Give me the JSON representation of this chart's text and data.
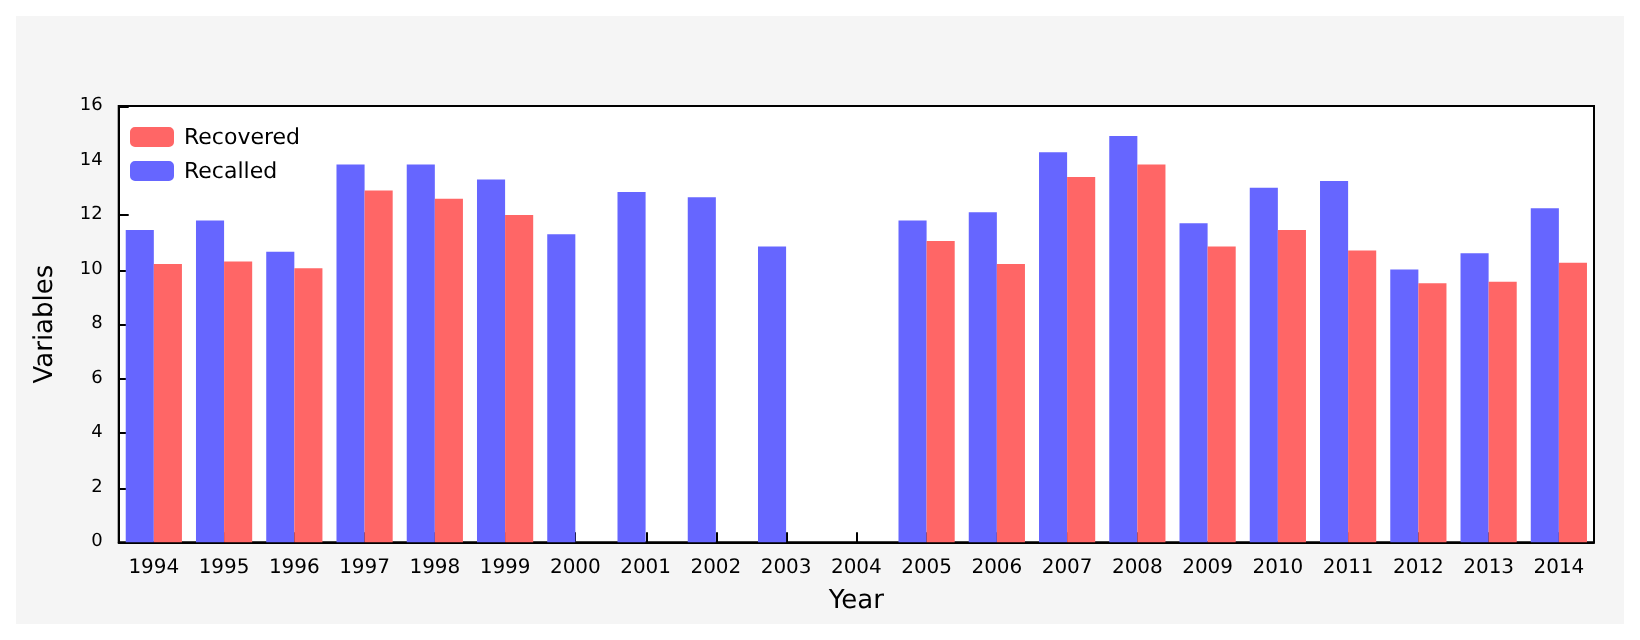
{
  "chart_data": {
    "type": "bar",
    "xlabel": "Year",
    "ylabel": "Variables",
    "categories": [
      "1994",
      "1995",
      "1996",
      "1997",
      "1998",
      "1999",
      "2000",
      "2001",
      "2002",
      "2003",
      "2004",
      "2005",
      "2006",
      "2007",
      "2008",
      "2009",
      "2010",
      "2011",
      "2012",
      "2013",
      "2014"
    ],
    "series": [
      {
        "name": "Recalled",
        "color": "#6666ff",
        "values": [
          11.45,
          11.8,
          10.65,
          13.85,
          13.85,
          13.3,
          11.3,
          12.85,
          12.65,
          10.85,
          null,
          11.8,
          12.1,
          14.3,
          14.9,
          11.7,
          13.0,
          13.25,
          10.0,
          10.6,
          12.25
        ]
      },
      {
        "name": "Recovered",
        "color": "#ff6666",
        "values": [
          10.2,
          10.3,
          10.05,
          12.9,
          12.6,
          12.0,
          null,
          null,
          null,
          null,
          null,
          11.05,
          10.2,
          13.4,
          13.85,
          10.85,
          11.45,
          10.7,
          9.5,
          9.55,
          10.25
        ]
      }
    ],
    "ylim": [
      0,
      16
    ],
    "yticks": [
      0,
      2,
      4,
      6,
      8,
      10,
      12,
      14,
      16
    ],
    "grid": false,
    "legend": "top left"
  }
}
